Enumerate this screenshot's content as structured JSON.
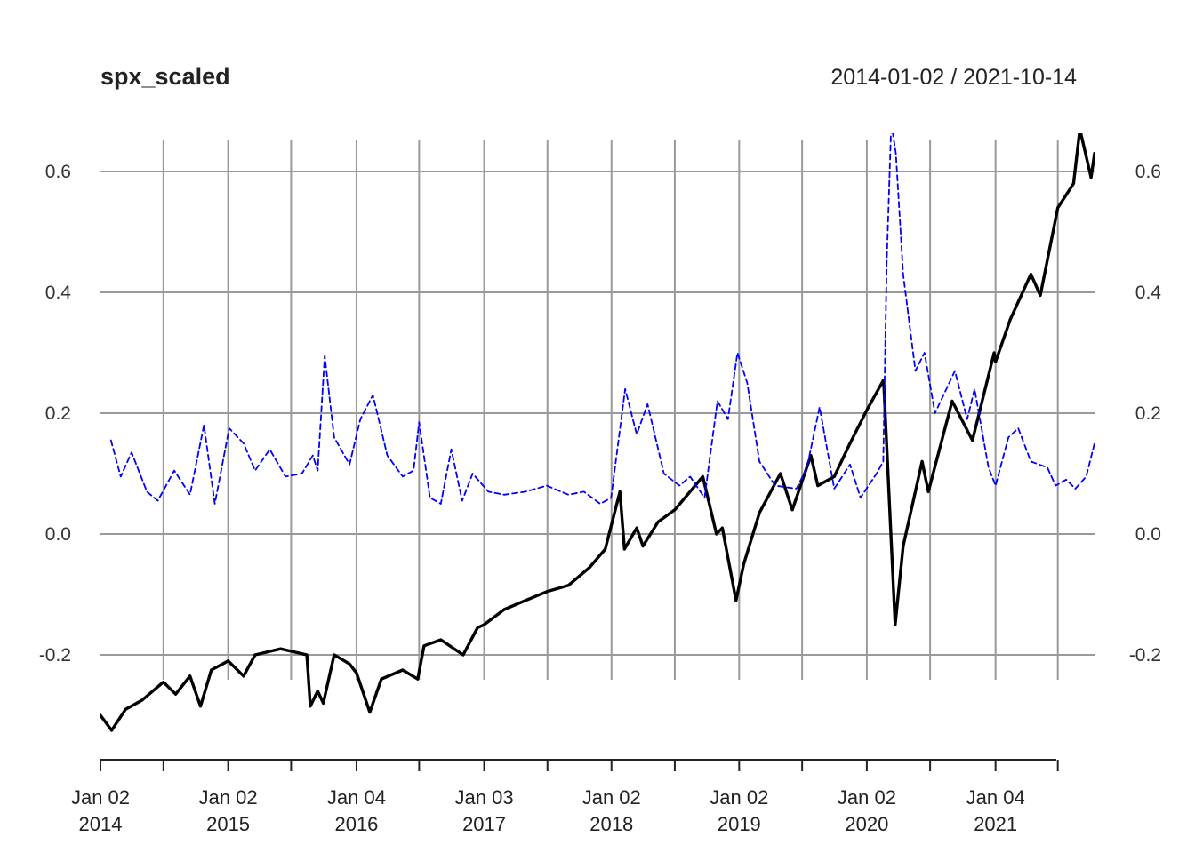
{
  "chart_data": {
    "type": "line",
    "title": "spx_scaled",
    "date_range": "2014-01-02 / 2021-10-14",
    "ylim": [
      -0.35,
      0.67
    ],
    "y_ticks": [
      {
        "value": -0.2,
        "label": "-0.2"
      },
      {
        "value": 0.0,
        "label": "0.0"
      },
      {
        "value": 0.2,
        "label": "0.2"
      },
      {
        "value": 0.4,
        "label": "0.4"
      },
      {
        "value": 0.6,
        "label": "0.6"
      }
    ],
    "x_range": [
      "2014-01-02",
      "2021-10-14"
    ],
    "x_ticks": [
      {
        "date": "2014-01-02",
        "line1": "Jan 02",
        "line2": "2014"
      },
      {
        "date": "2014-07-01"
      },
      {
        "date": "2015-01-02",
        "line1": "Jan 02",
        "line2": "2015"
      },
      {
        "date": "2015-07-01"
      },
      {
        "date": "2016-01-04",
        "line1": "Jan 04",
        "line2": "2016"
      },
      {
        "date": "2016-07-01"
      },
      {
        "date": "2017-01-03",
        "line1": "Jan 03",
        "line2": "2017"
      },
      {
        "date": "2017-07-03"
      },
      {
        "date": "2018-01-02",
        "line1": "Jan 02",
        "line2": "2018"
      },
      {
        "date": "2018-07-02"
      },
      {
        "date": "2019-01-02",
        "line1": "Jan 02",
        "line2": "2019"
      },
      {
        "date": "2019-07-01"
      },
      {
        "date": "2020-01-02",
        "line1": "Jan 02",
        "line2": "2020"
      },
      {
        "date": "2020-07-01"
      },
      {
        "date": "2021-01-04",
        "line1": "Jan 04",
        "line2": "2021"
      },
      {
        "date": "2021-07-01"
      }
    ],
    "grid": true,
    "series": [
      {
        "style": "solid",
        "color": "#000000",
        "points": [
          [
            "2014-01-02",
            -0.3
          ],
          [
            "2014-02-03",
            -0.325
          ],
          [
            "2014-03-15",
            -0.29
          ],
          [
            "2014-05-01",
            -0.275
          ],
          [
            "2014-07-01",
            -0.245
          ],
          [
            "2014-08-05",
            -0.265
          ],
          [
            "2014-09-15",
            -0.235
          ],
          [
            "2014-10-15",
            -0.285
          ],
          [
            "2014-11-15",
            -0.225
          ],
          [
            "2015-01-02",
            -0.21
          ],
          [
            "2015-02-15",
            -0.235
          ],
          [
            "2015-03-20",
            -0.2
          ],
          [
            "2015-06-01",
            -0.19
          ],
          [
            "2015-08-15",
            -0.2
          ],
          [
            "2015-08-25",
            -0.285
          ],
          [
            "2015-09-15",
            -0.26
          ],
          [
            "2015-10-01",
            -0.28
          ],
          [
            "2015-11-01",
            -0.2
          ],
          [
            "2015-12-15",
            -0.215
          ],
          [
            "2016-01-04",
            -0.23
          ],
          [
            "2016-02-11",
            -0.295
          ],
          [
            "2016-03-15",
            -0.24
          ],
          [
            "2016-05-15",
            -0.225
          ],
          [
            "2016-06-27",
            -0.24
          ],
          [
            "2016-07-15",
            -0.185
          ],
          [
            "2016-09-01",
            -0.175
          ],
          [
            "2016-11-04",
            -0.2
          ],
          [
            "2016-12-15",
            -0.155
          ],
          [
            "2017-01-03",
            -0.15
          ],
          [
            "2017-03-01",
            -0.125
          ],
          [
            "2017-05-01",
            -0.11
          ],
          [
            "2017-07-03",
            -0.095
          ],
          [
            "2017-09-01",
            -0.085
          ],
          [
            "2017-11-01",
            -0.055
          ],
          [
            "2017-12-15",
            -0.025
          ],
          [
            "2018-01-26",
            0.07
          ],
          [
            "2018-02-08",
            -0.025
          ],
          [
            "2018-03-15",
            0.01
          ],
          [
            "2018-04-02",
            -0.02
          ],
          [
            "2018-05-15",
            0.02
          ],
          [
            "2018-07-02",
            0.04
          ],
          [
            "2018-09-20",
            0.095
          ],
          [
            "2018-10-29",
            0.0
          ],
          [
            "2018-11-15",
            0.01
          ],
          [
            "2018-12-24",
            -0.11
          ],
          [
            "2019-01-15",
            -0.05
          ],
          [
            "2019-03-01",
            0.035
          ],
          [
            "2019-04-30",
            0.1
          ],
          [
            "2019-06-03",
            0.04
          ],
          [
            "2019-07-26",
            0.13
          ],
          [
            "2019-08-15",
            0.08
          ],
          [
            "2019-10-01",
            0.095
          ],
          [
            "2019-11-15",
            0.15
          ],
          [
            "2020-01-02",
            0.205
          ],
          [
            "2020-02-19",
            0.255
          ],
          [
            "2020-03-23",
            -0.15
          ],
          [
            "2020-04-15",
            -0.02
          ],
          [
            "2020-06-08",
            0.12
          ],
          [
            "2020-06-26",
            0.07
          ],
          [
            "2020-09-02",
            0.22
          ],
          [
            "2020-10-30",
            0.155
          ],
          [
            "2020-12-31",
            0.3
          ],
          [
            "2021-01-04",
            0.285
          ],
          [
            "2021-02-15",
            0.355
          ],
          [
            "2021-04-15",
            0.43
          ],
          [
            "2021-05-12",
            0.395
          ],
          [
            "2021-07-01",
            0.54
          ],
          [
            "2021-08-15",
            0.58
          ],
          [
            "2021-09-02",
            0.67
          ],
          [
            "2021-10-04",
            0.59
          ],
          [
            "2021-10-14",
            0.63
          ]
        ]
      },
      {
        "style": "dashed",
        "color": "#0000ff",
        "points": [
          [
            "2014-02-01",
            0.155
          ],
          [
            "2014-03-01",
            0.095
          ],
          [
            "2014-04-01",
            0.135
          ],
          [
            "2014-05-15",
            0.07
          ],
          [
            "2014-06-15",
            0.055
          ],
          [
            "2014-08-01",
            0.105
          ],
          [
            "2014-09-15",
            0.065
          ],
          [
            "2014-10-25",
            0.18
          ],
          [
            "2014-11-25",
            0.05
          ],
          [
            "2015-01-05",
            0.175
          ],
          [
            "2015-02-15",
            0.15
          ],
          [
            "2015-03-20",
            0.105
          ],
          [
            "2015-05-01",
            0.14
          ],
          [
            "2015-06-15",
            0.095
          ],
          [
            "2015-08-01",
            0.1
          ],
          [
            "2015-09-01",
            0.13
          ],
          [
            "2015-09-15",
            0.105
          ],
          [
            "2015-10-05",
            0.295
          ],
          [
            "2015-11-01",
            0.16
          ],
          [
            "2015-12-15",
            0.115
          ],
          [
            "2016-01-15",
            0.19
          ],
          [
            "2016-02-20",
            0.23
          ],
          [
            "2016-04-01",
            0.13
          ],
          [
            "2016-05-15",
            0.095
          ],
          [
            "2016-06-15",
            0.105
          ],
          [
            "2016-07-01",
            0.185
          ],
          [
            "2016-08-01",
            0.06
          ],
          [
            "2016-09-01",
            0.05
          ],
          [
            "2016-10-01",
            0.14
          ],
          [
            "2016-11-01",
            0.055
          ],
          [
            "2016-12-01",
            0.1
          ],
          [
            "2017-01-15",
            0.07
          ],
          [
            "2017-03-01",
            0.065
          ],
          [
            "2017-05-01",
            0.07
          ],
          [
            "2017-07-01",
            0.08
          ],
          [
            "2017-09-01",
            0.065
          ],
          [
            "2017-10-15",
            0.07
          ],
          [
            "2017-12-01",
            0.05
          ],
          [
            "2018-01-01",
            0.06
          ],
          [
            "2018-02-10",
            0.24
          ],
          [
            "2018-03-15",
            0.165
          ],
          [
            "2018-04-15",
            0.215
          ],
          [
            "2018-06-01",
            0.1
          ],
          [
            "2018-07-15",
            0.08
          ],
          [
            "2018-08-15",
            0.095
          ],
          [
            "2018-09-25",
            0.06
          ],
          [
            "2018-11-01",
            0.22
          ],
          [
            "2018-12-01",
            0.19
          ],
          [
            "2018-12-28",
            0.3
          ],
          [
            "2019-01-25",
            0.25
          ],
          [
            "2019-03-01",
            0.12
          ],
          [
            "2019-04-15",
            0.08
          ],
          [
            "2019-06-15",
            0.075
          ],
          [
            "2019-07-15",
            0.11
          ],
          [
            "2019-08-20",
            0.21
          ],
          [
            "2019-10-01",
            0.075
          ],
          [
            "2019-11-15",
            0.115
          ],
          [
            "2019-12-15",
            0.06
          ],
          [
            "2020-01-30",
            0.1
          ],
          [
            "2020-02-18",
            0.12
          ],
          [
            "2020-02-28",
            0.45
          ],
          [
            "2020-03-12",
            0.68
          ],
          [
            "2020-03-25",
            0.63
          ],
          [
            "2020-04-15",
            0.43
          ],
          [
            "2020-05-20",
            0.27
          ],
          [
            "2020-06-15",
            0.3
          ],
          [
            "2020-07-15",
            0.2
          ],
          [
            "2020-09-10",
            0.27
          ],
          [
            "2020-10-15",
            0.19
          ],
          [
            "2020-11-05",
            0.24
          ],
          [
            "2020-12-15",
            0.11
          ],
          [
            "2021-01-04",
            0.08
          ],
          [
            "2021-02-10",
            0.16
          ],
          [
            "2021-03-10",
            0.175
          ],
          [
            "2021-04-15",
            0.12
          ],
          [
            "2021-06-01",
            0.11
          ],
          [
            "2021-06-25",
            0.08
          ],
          [
            "2021-07-25",
            0.09
          ],
          [
            "2021-08-20",
            0.075
          ],
          [
            "2021-09-20",
            0.095
          ],
          [
            "2021-10-14",
            0.15
          ]
        ]
      }
    ]
  }
}
